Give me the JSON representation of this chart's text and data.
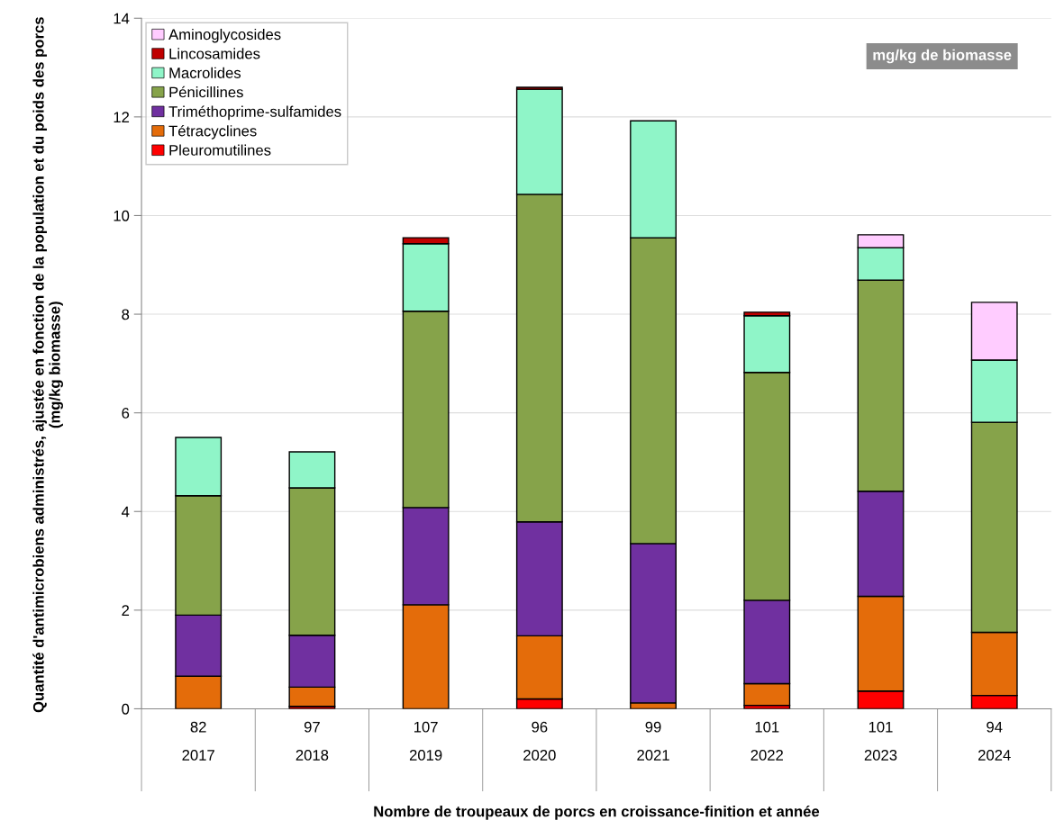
{
  "chart_data": {
    "type": "bar",
    "stacked": true,
    "categories": [
      "82\n2017",
      "97\n2018",
      "107\n2019",
      "96\n2020",
      "99\n2021",
      "101\n2022",
      "101\n2023",
      "94\n2024"
    ],
    "series": [
      {
        "name": "Pleuromutilines",
        "color": "#ff0000",
        "values": [
          null,
          0.05,
          null,
          0.2,
          null,
          0.07,
          0.36,
          0.27
        ]
      },
      {
        "name": "Tétracyclines",
        "color": "#e46c0a",
        "values": [
          0.66,
          0.39,
          2.11,
          1.28,
          0.12,
          0.44,
          1.92,
          1.28
        ]
      },
      {
        "name": "Triméthoprime-sulfamides",
        "color": "#7030a0",
        "values": [
          1.24,
          1.05,
          1.97,
          2.31,
          3.23,
          1.69,
          2.13,
          null
        ]
      },
      {
        "name": "Pénicillines",
        "color": "#86a34a",
        "values": [
          2.42,
          2.99,
          3.98,
          6.64,
          6.2,
          4.62,
          4.28,
          4.26
        ]
      },
      {
        "name": "Macrolides",
        "color": "#8ff5c8",
        "values": [
          1.18,
          0.73,
          1.37,
          2.13,
          2.37,
          1.15,
          0.66,
          1.26
        ]
      },
      {
        "name": "Lincosamides",
        "color": "#c00000",
        "values": [
          null,
          null,
          0.12,
          0.04,
          null,
          0.07,
          null,
          null
        ]
      },
      {
        "name": "Aminoglycosides",
        "color": "#ffccff",
        "values": [
          null,
          null,
          null,
          null,
          null,
          null,
          0.26,
          1.17
        ]
      }
    ],
    "ylim": [
      0,
      14
    ],
    "yticks": [
      0,
      2,
      4,
      6,
      8,
      10,
      12,
      14
    ],
    "ylabel": "Quantité d'antimicrobiens administrés, ajustée en fonction de la population et du poids des porcs (mg/kg biomasse)",
    "xlabel": "Nombre de troupeaux de porcs en croissance-finition et année",
    "annotations": [
      "mg/kg de biomasse"
    ],
    "grid": "y",
    "legend": "top left"
  }
}
